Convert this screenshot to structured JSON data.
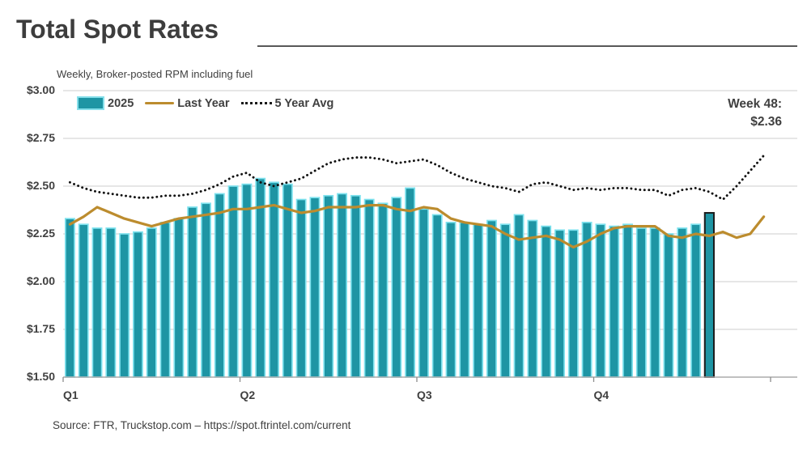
{
  "title": "Total Spot Rates",
  "subtitle": "Weekly, Broker-posted RPM including fuel",
  "annotation": {
    "line1": "Week 48:",
    "line2": "$2.36"
  },
  "source": "Source: FTR, Truckstop.com – https://spot.ftrintel.com/current",
  "legend": {
    "items": [
      {
        "label": "2025",
        "swatch": "bar"
      },
      {
        "label": "Last Year",
        "swatch": "line"
      },
      {
        "label": "5 Year Avg",
        "swatch": "dotted"
      }
    ]
  },
  "y_axis": {
    "labels": [
      "$3.00",
      "$2.75",
      "$2.50",
      "$2.25",
      "$2.00",
      "$1.75",
      "$1.50"
    ],
    "values": [
      3.0,
      2.75,
      2.5,
      2.25,
      2.0,
      1.75,
      1.5
    ]
  },
  "x_axis": {
    "labels": [
      "Q1",
      "Q2",
      "Q3",
      "Q4"
    ],
    "tick_weeks": [
      1,
      14,
      27,
      40
    ],
    "end_tick_week": 53
  },
  "colors": {
    "bar_fill": "#1E95A4",
    "bar_edge": "#7EE2EE",
    "highlight_stroke": "#1a1a1a",
    "last_year_line": "#BC8C2E",
    "five_year_line": "#111111",
    "gridline": "#D8D8D8",
    "axis": "#ABABAB",
    "text": "#404040"
  },
  "chart_data": {
    "type": "bar",
    "title": "Total Spot Rates",
    "subtitle": "Weekly, Broker-posted RPM including fuel",
    "x_unit": "week",
    "n_weeks": 52,
    "ylim": [
      1.5,
      3.0
    ],
    "grid": true,
    "legend_position": "top-left",
    "highlight": {
      "week": 48,
      "value": 2.36,
      "label": "Week 48: $2.36"
    },
    "bars": {
      "name": "2025",
      "weeks_start": 1,
      "values": [
        2.33,
        2.3,
        2.28,
        2.28,
        2.25,
        2.26,
        2.28,
        2.31,
        2.33,
        2.39,
        2.41,
        2.46,
        2.5,
        2.51,
        2.54,
        2.52,
        2.51,
        2.43,
        2.44,
        2.45,
        2.46,
        2.45,
        2.43,
        2.41,
        2.44,
        2.49,
        2.38,
        2.35,
        2.31,
        2.31,
        2.3,
        2.32,
        2.3,
        2.35,
        2.32,
        2.29,
        2.27,
        2.27,
        2.31,
        2.3,
        2.29,
        2.3,
        2.28,
        2.28,
        2.25,
        2.28,
        2.3,
        2.36
      ]
    },
    "lines": [
      {
        "name": "Last Year",
        "style": "solid",
        "values": [
          2.3,
          2.34,
          2.39,
          2.36,
          2.33,
          2.31,
          2.29,
          2.31,
          2.33,
          2.34,
          2.35,
          2.36,
          2.38,
          2.38,
          2.39,
          2.4,
          2.38,
          2.36,
          2.37,
          2.39,
          2.39,
          2.39,
          2.4,
          2.4,
          2.38,
          2.37,
          2.39,
          2.38,
          2.33,
          2.31,
          2.3,
          2.29,
          2.25,
          2.22,
          2.23,
          2.24,
          2.22,
          2.18,
          2.21,
          2.25,
          2.28,
          2.29,
          2.29,
          2.29,
          2.24,
          2.23,
          2.25,
          2.24,
          2.26,
          2.23,
          2.25,
          2.34
        ]
      },
      {
        "name": "5 Year Avg",
        "style": "dotted",
        "values": [
          2.52,
          2.49,
          2.47,
          2.46,
          2.45,
          2.44,
          2.44,
          2.45,
          2.45,
          2.46,
          2.48,
          2.51,
          2.55,
          2.57,
          2.52,
          2.5,
          2.52,
          2.54,
          2.58,
          2.62,
          2.64,
          2.65,
          2.65,
          2.64,
          2.62,
          2.63,
          2.64,
          2.61,
          2.57,
          2.54,
          2.52,
          2.5,
          2.49,
          2.47,
          2.51,
          2.52,
          2.5,
          2.48,
          2.49,
          2.48,
          2.49,
          2.49,
          2.48,
          2.48,
          2.45,
          2.48,
          2.49,
          2.47,
          2.43,
          2.5,
          2.58,
          2.66
        ]
      }
    ]
  }
}
